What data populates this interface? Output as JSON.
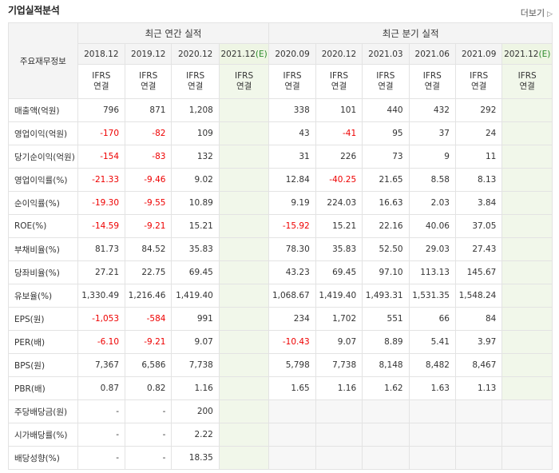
{
  "title": "기업실적분석",
  "more_label": "더보기",
  "header": {
    "row_label": "주요재무정보",
    "annual_group": "최근 연간 실적",
    "quarter_group": "최근 분기 실적",
    "annual_dates": [
      "2018.12",
      "2019.12",
      "2020.12",
      "2021.12"
    ],
    "annual_est": "(E)",
    "quarter_dates": [
      "2020.09",
      "2020.12",
      "2021.03",
      "2021.06",
      "2021.09",
      "2021.12"
    ],
    "quarter_est": "(E)",
    "ifrs": "IFRS",
    "consol": "연결"
  },
  "rows": [
    {
      "label": "매출액(억원)",
      "annual": [
        "796",
        "871",
        "1,208",
        ""
      ],
      "quarter": [
        "338",
        "101",
        "440",
        "432",
        "292",
        ""
      ]
    },
    {
      "label": "영업이익(억원)",
      "annual": [
        "-170",
        "-82",
        "109",
        ""
      ],
      "quarter": [
        "43",
        "-41",
        "95",
        "37",
        "24",
        ""
      ]
    },
    {
      "label": "당기순이익(억원)",
      "annual": [
        "-154",
        "-83",
        "132",
        ""
      ],
      "quarter": [
        "31",
        "226",
        "73",
        "9",
        "11",
        ""
      ]
    },
    {
      "label": "영업이익률(%)",
      "annual": [
        "-21.33",
        "-9.46",
        "9.02",
        ""
      ],
      "quarter": [
        "12.84",
        "-40.25",
        "21.65",
        "8.58",
        "8.13",
        ""
      ]
    },
    {
      "label": "순이익률(%)",
      "annual": [
        "-19.30",
        "-9.55",
        "10.89",
        ""
      ],
      "quarter": [
        "9.19",
        "224.03",
        "16.63",
        "2.03",
        "3.84",
        ""
      ]
    },
    {
      "label": "ROE(%)",
      "annual": [
        "-14.59",
        "-9.21",
        "15.21",
        ""
      ],
      "quarter": [
        "-15.92",
        "15.21",
        "22.16",
        "40.06",
        "37.05",
        ""
      ]
    },
    {
      "label": "부채비율(%)",
      "annual": [
        "81.73",
        "84.52",
        "35.83",
        ""
      ],
      "quarter": [
        "78.30",
        "35.83",
        "52.50",
        "29.03",
        "27.43",
        ""
      ]
    },
    {
      "label": "당좌비율(%)",
      "annual": [
        "27.21",
        "22.75",
        "69.45",
        ""
      ],
      "quarter": [
        "43.23",
        "69.45",
        "97.10",
        "113.13",
        "145.67",
        ""
      ]
    },
    {
      "label": "유보율(%)",
      "annual": [
        "1,330.49",
        "1,216.46",
        "1,419.40",
        ""
      ],
      "quarter": [
        "1,068.67",
        "1,419.40",
        "1,493.31",
        "1,531.35",
        "1,548.24",
        ""
      ]
    },
    {
      "label": "EPS(원)",
      "annual": [
        "-1,053",
        "-584",
        "991",
        ""
      ],
      "quarter": [
        "234",
        "1,702",
        "551",
        "66",
        "84",
        ""
      ]
    },
    {
      "label": "PER(배)",
      "annual": [
        "-6.10",
        "-9.21",
        "9.07",
        ""
      ],
      "quarter": [
        "-10.43",
        "9.07",
        "8.89",
        "5.41",
        "3.97",
        ""
      ]
    },
    {
      "label": "BPS(원)",
      "annual": [
        "7,367",
        "6,586",
        "7,738",
        ""
      ],
      "quarter": [
        "5,798",
        "7,738",
        "8,148",
        "8,482",
        "8,467",
        ""
      ]
    },
    {
      "label": "PBR(배)",
      "annual": [
        "0.87",
        "0.82",
        "1.16",
        ""
      ],
      "quarter": [
        "1.65",
        "1.16",
        "1.62",
        "1.63",
        "1.13",
        ""
      ]
    },
    {
      "label": "주당배당금(원)",
      "annual": [
        "-",
        "-",
        "200",
        ""
      ],
      "quarter": []
    },
    {
      "label": "시가배당률(%)",
      "annual": [
        "-",
        "-",
        "2.22",
        ""
      ],
      "quarter": []
    },
    {
      "label": "배당성향(%)",
      "annual": [
        "-",
        "-",
        "18.35",
        ""
      ],
      "quarter": []
    }
  ],
  "colors": {
    "negative": "#ee0000",
    "ifrs": "#e8671c",
    "estimate": "#2c8b2c",
    "shade": "#f1f7ea"
  }
}
